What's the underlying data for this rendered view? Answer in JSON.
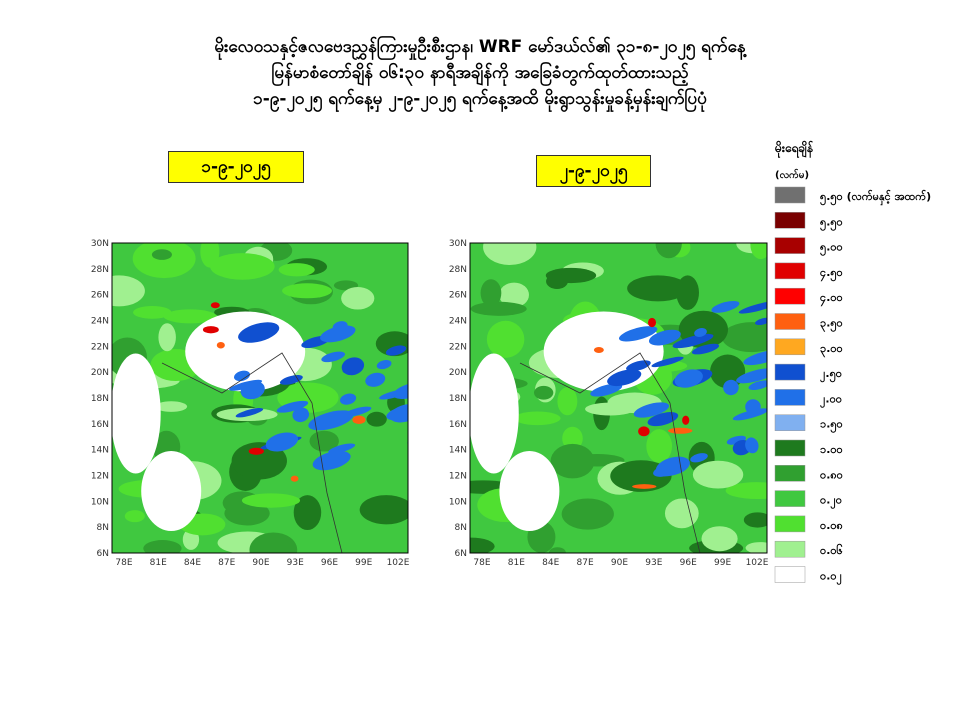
{
  "header": {
    "title_lines": [
      "မိုးလေဝသနှင့်ဇလဗေဒညွှန်ကြားမှုဦးစီးဌာန၊ WRF မော်ဒယ်လ်၏ ၃၁-၈-၂၀၂၅ ရက်နေ့",
      "မြန်မာစံတော်ချိန် ၀၆:၃၀ နာရီအချိန်ကို အခြေခံတွက်ထုတ်ထားသည့်",
      "၁-၉-၂၀၂၅ ရက်နေ့မှ ၂-၉-၂၀၂၅ ရက်နေ့အထိ မိုးရွာသွန်းမှုခန့်မှန်းချက်ပြပုံ"
    ]
  },
  "panels": [
    {
      "date": "၁-၉-၂၀၂၅"
    },
    {
      "date": "၂-၉-၂၀၂၅"
    }
  ],
  "map_axes": {
    "lat_labels": [
      "30N",
      "28N",
      "26N",
      "24N",
      "22N",
      "20N",
      "18N",
      "16N",
      "14N",
      "12N",
      "10N",
      "8N",
      "6N"
    ],
    "lon_labels": [
      "78E",
      "81E",
      "84E",
      "87E",
      "90E",
      "93E",
      "96E",
      "99E",
      "102E"
    ]
  },
  "legend": {
    "title": "မိုးရေချိန်",
    "unit": "(လက်မ)",
    "items": [
      {
        "label": "၅.၅၀ (လက်မနှင့် အထက်)",
        "color": "#707070"
      },
      {
        "label": "၅.၅၀",
        "color": "#7a0000"
      },
      {
        "label": "၅.၀၀",
        "color": "#a80000"
      },
      {
        "label": "၄.၅၀",
        "color": "#e00000"
      },
      {
        "label": "၄.၀၀",
        "color": "#ff0000"
      },
      {
        "label": "၃.၅၀",
        "color": "#ff6010"
      },
      {
        "label": "၃.၀၀",
        "color": "#ffa820"
      },
      {
        "label": "၂.၅၀",
        "color": "#1050d0"
      },
      {
        "label": "၂.၀၀",
        "color": "#2070e8"
      },
      {
        "label": "၁.၅၀",
        "color": "#80b0f0"
      },
      {
        "label": "၁.၀၀",
        "color": "#1e7a1e"
      },
      {
        "label": "၀.၈၀",
        "color": "#30a030"
      },
      {
        "label": "၀.၂၀",
        "color": "#40c840"
      },
      {
        "label": "၀.၀၈",
        "color": "#50e030"
      },
      {
        "label": "၀.၀၆",
        "color": "#a0f090"
      },
      {
        "label": "၀.၀၂",
        "color": "#ffffff"
      }
    ]
  }
}
